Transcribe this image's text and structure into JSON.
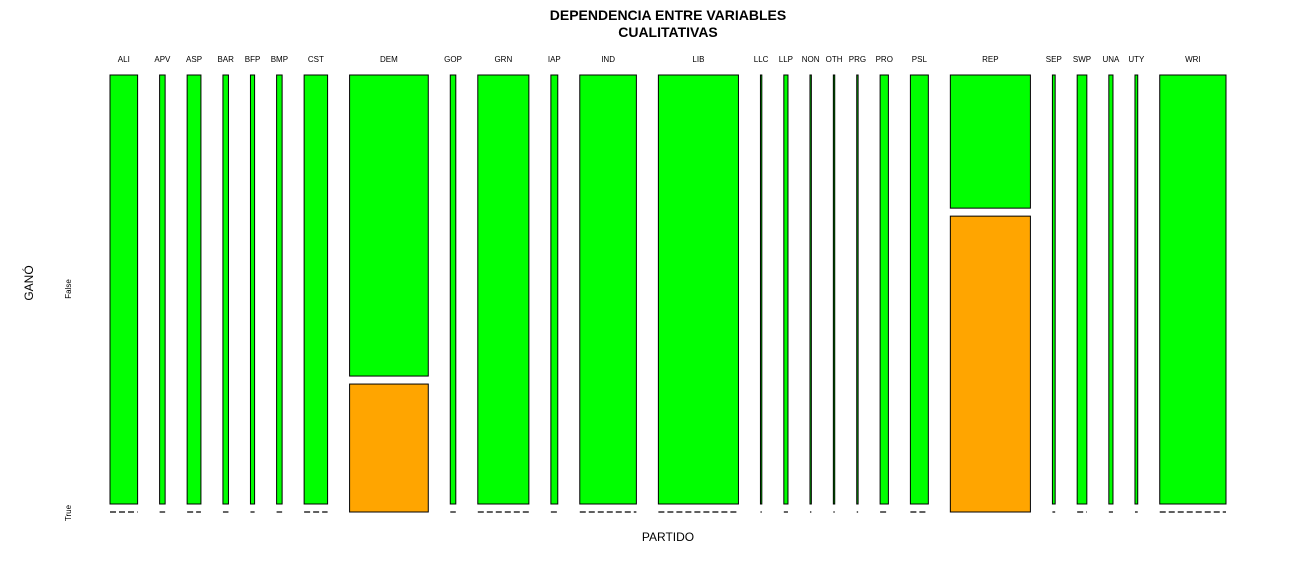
{
  "chart_data": {
    "type": "mosaic",
    "title": "DEPENDENCIA ENTRE VARIABLES",
    "subtitle": "CUALITATIVAS",
    "xlabel": "PARTIDO",
    "ylabel": "GANÓ",
    "levels": [
      "False",
      "True"
    ],
    "colors": {
      "False": "#00ff00",
      "True": "#ffa500",
      "border": "#000000"
    },
    "categories": [
      "ALI",
      "APV",
      "ASP",
      "BAR",
      "BFP",
      "BMP",
      "CST",
      "DEM",
      "GOP",
      "GRN",
      "IAP",
      "IND",
      "LIB",
      "LLC",
      "LLP",
      "NON",
      "OTH",
      "PRG",
      "PRO",
      "PSL",
      "REP",
      "SEP",
      "SWP",
      "UNA",
      "UTY",
      "WRI"
    ],
    "counts": [
      {
        "false": 20,
        "true": 0
      },
      {
        "false": 4,
        "true": 0
      },
      {
        "false": 10,
        "true": 0
      },
      {
        "false": 4,
        "true": 0
      },
      {
        "false": 3,
        "true": 0
      },
      {
        "false": 4,
        "true": 0
      },
      {
        "false": 17,
        "true": 0
      },
      {
        "false": 40,
        "true": 17
      },
      {
        "false": 4,
        "true": 0
      },
      {
        "false": 37,
        "true": 0
      },
      {
        "false": 5,
        "true": 0
      },
      {
        "false": 41,
        "true": 0
      },
      {
        "false": 58,
        "true": 0
      },
      {
        "false": 1,
        "true": 0
      },
      {
        "false": 3,
        "true": 0
      },
      {
        "false": 1,
        "true": 0
      },
      {
        "false": 1,
        "true": 0
      },
      {
        "false": 1,
        "true": 0
      },
      {
        "false": 6,
        "true": 0
      },
      {
        "false": 13,
        "true": 0
      },
      {
        "false": 18,
        "true": 40
      },
      {
        "false": 2,
        "true": 0
      },
      {
        "false": 7,
        "true": 0
      },
      {
        "false": 3,
        "true": 0
      },
      {
        "false": 2,
        "true": 0
      },
      {
        "false": 48,
        "true": 0
      }
    ]
  }
}
